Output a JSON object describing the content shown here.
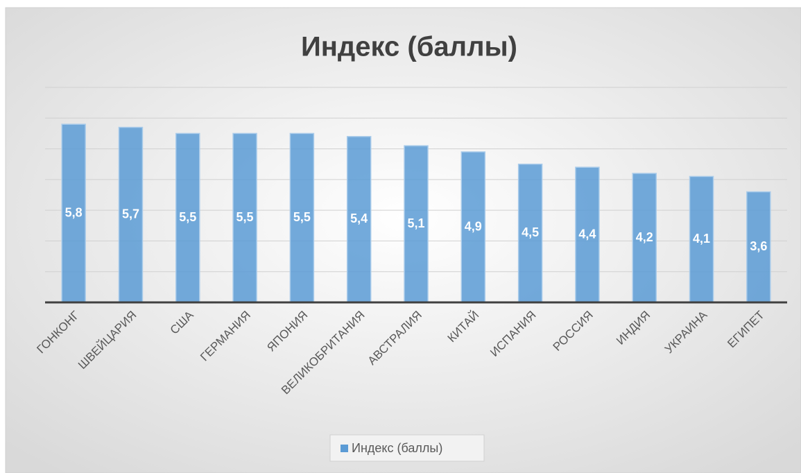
{
  "chart_data": {
    "type": "bar",
    "title": "Индекс (баллы)",
    "categories": [
      "ГОНКОНГ",
      "ШВЕЙЦАРИЯ",
      "США",
      "ГЕРМАНИЯ",
      "ЯПОНИЯ",
      "ВЕЛИКОБРИТАНИЯ",
      "АВСТРАЛИЯ",
      "КИТАЙ",
      "ИСПАНИЯ",
      "РОССИЯ",
      "ИНДИЯ",
      "УКРАИНА",
      "ЕГИПЕТ"
    ],
    "series": [
      {
        "name": "Индекс (баллы)",
        "color": "#5b9bd5",
        "values": [
          5.8,
          5.7,
          5.5,
          5.5,
          5.5,
          5.4,
          5.1,
          4.9,
          4.5,
          4.4,
          4.2,
          4.1,
          3.6
        ],
        "value_labels": [
          "5,8",
          "5,7",
          "5,5",
          "5,5",
          "5,5",
          "5,4",
          "5,1",
          "4,9",
          "4,5",
          "4,4",
          "4,2",
          "4,1",
          "3,6"
        ]
      }
    ],
    "ylim": [
      0,
      7
    ],
    "yticks": [
      0,
      1,
      2,
      3,
      4,
      5,
      6,
      7
    ],
    "grid": true,
    "legend": "bottom"
  }
}
